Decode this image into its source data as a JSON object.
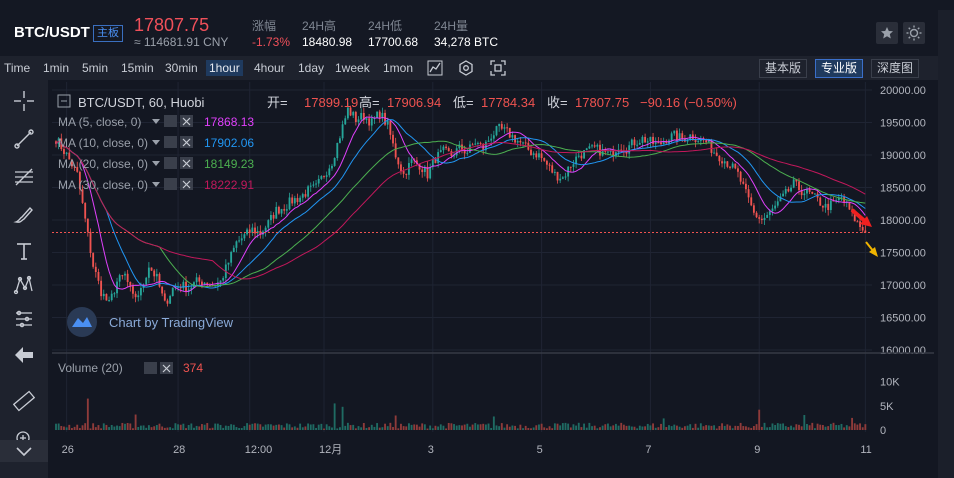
{
  "header": {
    "pair": "BTC/USDT",
    "badge": "主板",
    "price": "17807.75",
    "cny": "≈ 114681.91 CNY",
    "stats": [
      {
        "label": "涨幅",
        "value": "-1.73%",
        "red": true
      },
      {
        "label": "24H高",
        "value": "18480.98"
      },
      {
        "label": "24H低",
        "value": "17700.68"
      },
      {
        "label": "24H量",
        "value": "34,278 BTC"
      }
    ]
  },
  "timeframes": [
    "Time",
    "1min",
    "5min",
    "15min",
    "30min",
    "1hour",
    "4hour",
    "1day",
    "1week",
    "1mon"
  ],
  "active_timeframe": "1hour",
  "modes": [
    "基本版",
    "专业版",
    "深度图"
  ],
  "active_mode": "专业版",
  "legend": {
    "symbol": "BTC/USDT, 60, Huobi",
    "open_label": "开=",
    "open": "17899.19",
    "high_label": "高=",
    "high": "17906.94",
    "low_label": "低=",
    "low": "17784.34",
    "close_label": "收=",
    "close": "17807.75",
    "change": "−90.16 (−0.50%)"
  },
  "indicators": [
    {
      "label": "MA (5, close, 0)",
      "value": "17868.13",
      "color": "#e040fb"
    },
    {
      "label": "MA (10, close, 0)",
      "value": "17902.06",
      "color": "#2196f3"
    },
    {
      "label": "MA (20, close, 0)",
      "value": "18149.23",
      "color": "#4caf50"
    },
    {
      "label": "MA (30, close, 0)",
      "value": "18222.91",
      "color": "#c2185b"
    }
  ],
  "volume_legend": {
    "label": "Volume (20)",
    "value": "374"
  },
  "watermark": "Chart by TradingView",
  "price_label": "17807.75",
  "colors": {
    "up": "#26a69a",
    "down": "#ef5350",
    "background": "#131722",
    "accent": "#4a8ff2"
  },
  "chart_data": {
    "type": "candlestick",
    "y_ticks": [
      16000,
      16500,
      17000,
      17500,
      18000,
      18500,
      19000,
      19500,
      20000
    ],
    "y_tick_labels": [
      "16000.00",
      "16500.00",
      "17000.00",
      "17500.00",
      "18000.00",
      "18500.00",
      "19000.00",
      "19500.00",
      "20000.00"
    ],
    "ylim": [
      16000,
      20000
    ],
    "x_ticks": [
      "26",
      "28",
      "12:00",
      "12月",
      "3",
      "5",
      "7",
      "9",
      "11"
    ],
    "volume_ticks": [
      "10K",
      "5K",
      "0"
    ],
    "close_path": [
      [
        0,
        19250
      ],
      [
        4,
        19000
      ],
      [
        8,
        18700
      ],
      [
        11,
        18000
      ],
      [
        14,
        17300
      ],
      [
        17,
        16900
      ],
      [
        20,
        16700
      ],
      [
        23,
        17050
      ],
      [
        26,
        17150
      ],
      [
        29,
        16800
      ],
      [
        32,
        16900
      ],
      [
        35,
        17300
      ],
      [
        38,
        17100
      ],
      [
        41,
        16700
      ],
      [
        44,
        16950
      ],
      [
        47,
        17000
      ],
      [
        50,
        16950
      ],
      [
        53,
        17050
      ],
      [
        56,
        17050
      ],
      [
        59,
        17000
      ],
      [
        62,
        17050
      ],
      [
        65,
        17350
      ],
      [
        68,
        17650
      ],
      [
        71,
        17750
      ],
      [
        74,
        17850
      ],
      [
        77,
        17800
      ],
      [
        80,
        17950
      ],
      [
        83,
        18150
      ],
      [
        86,
        18200
      ],
      [
        89,
        18300
      ],
      [
        92,
        18350
      ],
      [
        95,
        18450
      ],
      [
        98,
        18500
      ],
      [
        101,
        18700
      ],
      [
        104,
        18900
      ],
      [
        107,
        19300
      ],
      [
        110,
        19700
      ],
      [
        113,
        19550
      ],
      [
        116,
        19600
      ],
      [
        119,
        19500
      ],
      [
        122,
        19650
      ],
      [
        125,
        19450
      ],
      [
        128,
        19000
      ],
      [
        131,
        18700
      ],
      [
        134,
        18900
      ],
      [
        137,
        18850
      ],
      [
        140,
        18700
      ],
      [
        143,
        18950
      ],
      [
        146,
        19050
      ],
      [
        149,
        19000
      ],
      [
        152,
        19100
      ],
      [
        155,
        19050
      ],
      [
        158,
        19200
      ],
      [
        161,
        19100
      ],
      [
        164,
        19300
      ],
      [
        167,
        19400
      ],
      [
        170,
        19350
      ],
      [
        173,
        19250
      ],
      [
        176,
        19150
      ],
      [
        179,
        19050
      ],
      [
        182,
        19000
      ],
      [
        185,
        18850
      ],
      [
        188,
        18700
      ],
      [
        191,
        18650
      ],
      [
        194,
        18850
      ],
      [
        197,
        19000
      ],
      [
        200,
        19050
      ],
      [
        203,
        19100
      ],
      [
        206,
        19050
      ],
      [
        209,
        19000
      ],
      [
        212,
        19150
      ],
      [
        215,
        19100
      ],
      [
        218,
        19200
      ],
      [
        221,
        19250
      ],
      [
        224,
        19200
      ],
      [
        227,
        19150
      ],
      [
        230,
        19250
      ],
      [
        233,
        19300
      ],
      [
        236,
        19250
      ],
      [
        239,
        19300
      ],
      [
        242,
        19250
      ],
      [
        245,
        19200
      ],
      [
        248,
        19050
      ],
      [
        251,
        18950
      ],
      [
        254,
        18850
      ],
      [
        257,
        18700
      ],
      [
        260,
        18400
      ],
      [
        263,
        18100
      ],
      [
        266,
        18000
      ],
      [
        269,
        18100
      ],
      [
        272,
        18250
      ],
      [
        275,
        18400
      ],
      [
        278,
        18550
      ],
      [
        281,
        18450
      ],
      [
        284,
        18400
      ],
      [
        287,
        18300
      ],
      [
        290,
        18200
      ],
      [
        293,
        18250
      ],
      [
        296,
        18350
      ],
      [
        299,
        18150
      ],
      [
        302,
        17950
      ],
      [
        305,
        17808
      ]
    ],
    "volume_spikes": [
      [
        12,
        6500
      ],
      [
        30,
        3200
      ],
      [
        105,
        5500
      ],
      [
        108,
        4800
      ],
      [
        128,
        3000
      ],
      [
        165,
        2800
      ],
      [
        229,
        2400
      ],
      [
        265,
        4200
      ],
      [
        282,
        3100
      ],
      [
        300,
        2500
      ]
    ]
  }
}
